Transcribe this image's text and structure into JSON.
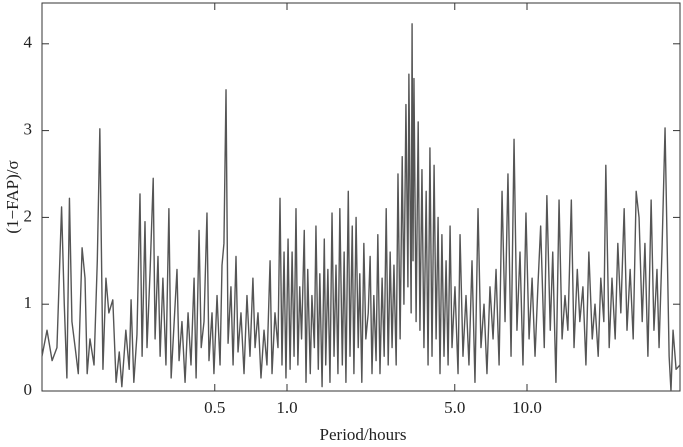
{
  "chart_data": {
    "type": "line",
    "xlabel": "Period/hours",
    "ylabel": "(1−FAP)/σ",
    "xscale": "log",
    "xlim": [
      0.0953,
      43.4
    ],
    "ylim": [
      0,
      4.47
    ],
    "xticks": [
      0.5,
      {
        "value": 1,
        "label": "1.0"
      },
      {
        "value": 5,
        "label": "5.0"
      },
      {
        "value": 10,
        "label": "10.0"
      }
    ],
    "yticks": [
      0,
      1,
      2,
      3,
      4
    ],
    "grid": false,
    "series": [
      {
        "color": "#555555",
        "x": [
          0.0953,
          0.1,
          0.105,
          0.11,
          0.115,
          0.118,
          0.121,
          0.124,
          0.127,
          0.131,
          0.135,
          0.14,
          0.144,
          0.147,
          0.151,
          0.157,
          0.162,
          0.166,
          0.171,
          0.176,
          0.181,
          0.188,
          0.194,
          0.2,
          0.205,
          0.213,
          0.22,
          0.224,
          0.23,
          0.237,
          0.244,
          0.249,
          0.256,
          0.261,
          0.269,
          0.277,
          0.282,
          0.29,
          0.296,
          0.304,
          0.313,
          0.322,
          0.329,
          0.338,
          0.348,
          0.355,
          0.365,
          0.376,
          0.387,
          0.398,
          0.41,
          0.418,
          0.43,
          0.439,
          0.451,
          0.464,
          0.473,
          0.487,
          0.496,
          0.511,
          0.526,
          0.536,
          0.546,
          0.557,
          0.568,
          0.584,
          0.596,
          0.613,
          0.625,
          0.643,
          0.662,
          0.681,
          0.701,
          0.721,
          0.736,
          0.757,
          0.779,
          0.802,
          0.825,
          0.85,
          0.866,
          0.891,
          0.917,
          0.935,
          0.953,
          0.972,
          0.99,
          1.01,
          1.03,
          1.05,
          1.07,
          1.09,
          1.11,
          1.13,
          1.15,
          1.18,
          1.2,
          1.22,
          1.25,
          1.27,
          1.3,
          1.32,
          1.35,
          1.37,
          1.4,
          1.43,
          1.45,
          1.48,
          1.51,
          1.54,
          1.57,
          1.6,
          1.63,
          1.66,
          1.7,
          1.73,
          1.76,
          1.8,
          1.83,
          1.87,
          1.9,
          1.94,
          1.98,
          2.01,
          2.05,
          2.09,
          2.13,
          2.18,
          2.22,
          2.26,
          2.3,
          2.35,
          2.39,
          2.44,
          2.49,
          2.54,
          2.59,
          2.64,
          2.69,
          2.74,
          2.79,
          2.85,
          2.9,
          2.96,
          3.02,
          3.07,
          3.13,
          3.19,
          3.22,
          3.29,
          3.32,
          3.35,
          3.38,
          3.45,
          3.52,
          3.58,
          3.65,
          3.72,
          3.8,
          3.87,
          3.94,
          4.02,
          4.1,
          4.18,
          4.26,
          4.34,
          4.42,
          4.51,
          4.6,
          4.69,
          4.78,
          4.87,
          5.01,
          5.16,
          5.26,
          5.41,
          5.57,
          5.73,
          5.9,
          6.07,
          6.25,
          6.43,
          6.62,
          6.81,
          7.01,
          7.22,
          7.43,
          7.65,
          7.87,
          8.1,
          8.33,
          8.58,
          8.83,
          9.08,
          9.35,
          9.62,
          9.9,
          10.2,
          10.5,
          10.8,
          11.1,
          11.4,
          11.8,
          12.1,
          12.5,
          12.8,
          13.2,
          13.6,
          14.0,
          14.4,
          14.8,
          15.3,
          15.7,
          16.2,
          16.6,
          17.1,
          17.6,
          18.1,
          18.7,
          19.2,
          19.8,
          20.3,
          20.9,
          21.3,
          22.0,
          22.6,
          23.3,
          23.9,
          24.6,
          25.4,
          26.1,
          26.9,
          27.7,
          28.5,
          29.3,
          30.2,
          31.0,
          31.9,
          32.9,
          33.8,
          34.8,
          35.5,
          36.5,
          37.6,
          38.3,
          39.1,
          39.8,
          40.6,
          41.8,
          43.4
        ],
        "values": [
          0.4,
          0.7,
          0.35,
          0.5,
          2.12,
          1.0,
          0.15,
          2.22,
          0.8,
          0.5,
          0.2,
          1.65,
          1.3,
          0.2,
          0.6,
          0.3,
          1.5,
          3.02,
          0.25,
          1.3,
          0.9,
          1.05,
          0.1,
          0.45,
          0.05,
          0.7,
          0.25,
          1.05,
          0.1,
          0.65,
          2.27,
          0.4,
          1.95,
          0.5,
          1.4,
          2.45,
          0.6,
          1.55,
          0.4,
          1.3,
          0.3,
          2.1,
          0.15,
          0.75,
          1.4,
          0.35,
          0.8,
          0.1,
          0.9,
          0.3,
          1.3,
          0.15,
          1.85,
          0.5,
          0.8,
          2.05,
          0.35,
          0.9,
          0.2,
          1.1,
          0.3,
          1.45,
          1.7,
          3.47,
          0.55,
          1.2,
          0.3,
          1.55,
          0.45,
          0.9,
          0.2,
          1.1,
          0.4,
          1.3,
          0.5,
          0.9,
          0.15,
          0.7,
          0.3,
          1.5,
          0.2,
          0.9,
          0.5,
          2.22,
          0.3,
          1.6,
          0.15,
          1.75,
          0.25,
          1.6,
          0.4,
          2.1,
          0.3,
          1.2,
          0.6,
          1.85,
          0.1,
          1.4,
          0.2,
          1.1,
          0.5,
          1.9,
          0.25,
          1.35,
          0.05,
          1.75,
          0.3,
          1.4,
          0.1,
          2.05,
          0.4,
          1.45,
          0.2,
          2.1,
          0.3,
          1.6,
          0.1,
          2.3,
          0.4,
          1.9,
          0.2,
          2.0,
          0.5,
          1.35,
          0.1,
          1.7,
          0.6,
          0.9,
          1.55,
          0.2,
          1.1,
          0.35,
          1.8,
          0.2,
          1.3,
          0.4,
          2.1,
          0.3,
          1.6,
          0.5,
          1.45,
          0.3,
          2.5,
          0.6,
          2.7,
          1.0,
          3.3,
          1.2,
          3.65,
          0.9,
          4.23,
          1.5,
          3.6,
          0.8,
          3.1,
          0.7,
          2.55,
          0.5,
          2.3,
          0.3,
          2.8,
          0.4,
          2.6,
          0.6,
          2.0,
          0.2,
          1.8,
          0.4,
          1.5,
          0.3,
          1.9,
          0.5,
          1.2,
          0.2,
          1.8,
          0.4,
          1.1,
          0.3,
          1.5,
          0.1,
          2.1,
          0.5,
          1.0,
          0.2,
          1.2,
          0.6,
          1.4,
          0.3,
          2.3,
          0.8,
          2.5,
          0.4,
          2.9,
          0.7,
          1.6,
          0.3,
          2.05,
          0.6,
          1.3,
          0.4,
          1.2,
          1.9,
          0.5,
          2.25,
          0.7,
          1.6,
          0.1,
          2.2,
          0.6,
          1.1,
          0.7,
          2.2,
          0.5,
          1.4,
          0.8,
          1.2,
          0.3,
          1.6,
          0.6,
          1.0,
          0.4,
          1.3,
          0.8,
          2.6,
          0.5,
          1.3,
          0.6,
          1.7,
          0.9,
          2.1,
          0.7,
          1.4,
          0.6,
          2.3,
          2.0,
          0.8,
          1.7,
          0.4,
          2.2,
          0.7,
          1.4,
          0.5,
          1.6,
          3.03,
          1.8,
          0.4,
          0.0,
          0.7,
          0.25,
          0.3
        ]
      }
    ]
  }
}
